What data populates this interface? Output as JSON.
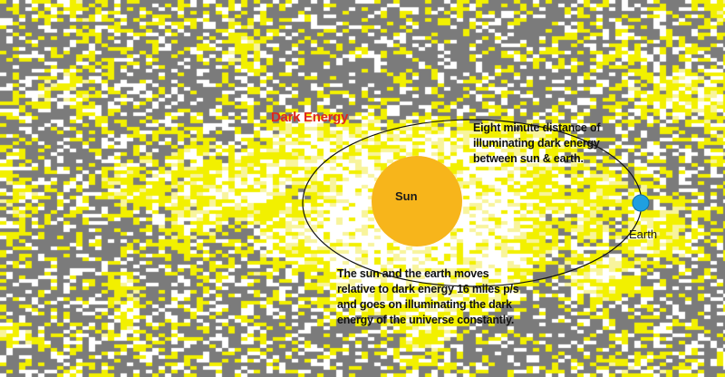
{
  "diagram": {
    "labels": {
      "dark_energy": "Dark Energy",
      "sun": "Sun",
      "earth": "Earth"
    },
    "notes": {
      "distance": [
        "Eight minute distance of",
        "illuminating dark energy",
        "between sun & earth."
      ],
      "motion": [
        "The sun and the earth moves",
        "relative to dark energy 16 miles p/s",
        "and goes on illuminating the dark",
        "energy of the universe constantly."
      ]
    },
    "colors": {
      "background_gray": "#7b7b7b",
      "dark_energy_yellow": "#f2f000",
      "pale_yellow": "#f8f49c",
      "illuminated_white": "#ffffff",
      "sun": "#f7b51b",
      "earth": "#1f9fe0",
      "orbit": "#111111",
      "dark_energy_label": "#e0281c"
    }
  }
}
